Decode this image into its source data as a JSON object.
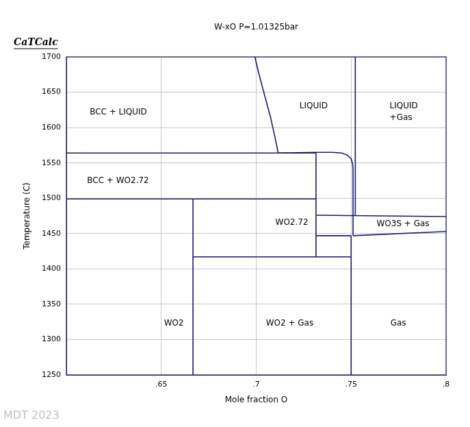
{
  "chart_data": {
    "type": "line",
    "title": "W-xO P=1.01325bar",
    "logo_text": "CaTCalc",
    "footer_text": "MDT 2023",
    "x_label": "Mole fraction O",
    "y_label": "Temperature (C)",
    "xlim": [
      0.6,
      0.8
    ],
    "xticks": [
      {
        "value": 0.65,
        "label": ".65"
      },
      {
        "value": 0.7,
        "label": ".7"
      },
      {
        "value": 0.75,
        "label": ".75"
      },
      {
        "value": 0.8,
        "label": ".8"
      }
    ],
    "ylim": [
      1250,
      1700
    ],
    "yticks": [
      1250,
      1300,
      1350,
      1400,
      1450,
      1500,
      1550,
      1600,
      1650,
      1700
    ],
    "grid": true,
    "color": "#191970",
    "lines": [
      {
        "x": [
          0.6,
          0.7315
        ],
        "y": [
          1564,
          1564
        ]
      },
      {
        "x": [
          0.6993,
          0.7015,
          0.7045,
          0.7075,
          0.71,
          0.7116
        ],
        "y": [
          1700,
          1675,
          1645,
          1615,
          1585,
          1564
        ]
      },
      {
        "x": [
          0.7116,
          0.7315,
          0.74,
          0.745,
          0.748,
          0.75,
          0.7508,
          0.751,
          0.751
        ],
        "y": [
          1564,
          1565,
          1565,
          1564,
          1561,
          1556,
          1548,
          1540,
          1447
        ]
      },
      {
        "x": [
          0.7522,
          0.7522
        ],
        "y": [
          1700,
          1475
        ]
      },
      {
        "x": [
          0.7315,
          0.7315
        ],
        "y": [
          1564,
          1417
        ]
      },
      {
        "x": [
          0.6,
          0.7315
        ],
        "y": [
          1499,
          1499
        ]
      },
      {
        "x": [
          0.6667,
          0.6667
        ],
        "y": [
          1499,
          1250
        ]
      },
      {
        "x": [
          0.6667,
          0.75
        ],
        "y": [
          1417,
          1417
        ]
      },
      {
        "x": [
          0.75,
          0.75
        ],
        "y": [
          1250,
          1447
        ]
      },
      {
        "x": [
          0.7315,
          0.8
        ],
        "y": [
          1476,
          1474
        ]
      },
      {
        "x": [
          0.7315,
          0.75
        ],
        "y": [
          1447,
          1447
        ]
      },
      {
        "x": [
          0.751,
          0.8
        ],
        "y": [
          1447,
          1453
        ]
      }
    ],
    "annotations": [
      {
        "text": "BCC + LIQUID",
        "x": 0.6123,
        "y": 1622
      },
      {
        "text": "LIQUID",
        "x": 0.7228,
        "y": 1630
      },
      {
        "text": "LIQUID",
        "x": 0.7703,
        "y": 1630
      },
      {
        "text": "+Gas",
        "x": 0.7703,
        "y": 1614
      },
      {
        "text": "BCC + WO2.72",
        "x": 0.6109,
        "y": 1525
      },
      {
        "text": "WO2.72",
        "x": 0.7101,
        "y": 1465
      },
      {
        "text": "WO3S + Gas",
        "x": 0.7634,
        "y": 1463
      },
      {
        "text": "WO2",
        "x": 0.6514,
        "y": 1323
      },
      {
        "text": "WO2 + Gas",
        "x": 0.7051,
        "y": 1323
      },
      {
        "text": "Gas",
        "x": 0.7707,
        "y": 1323
      }
    ]
  }
}
